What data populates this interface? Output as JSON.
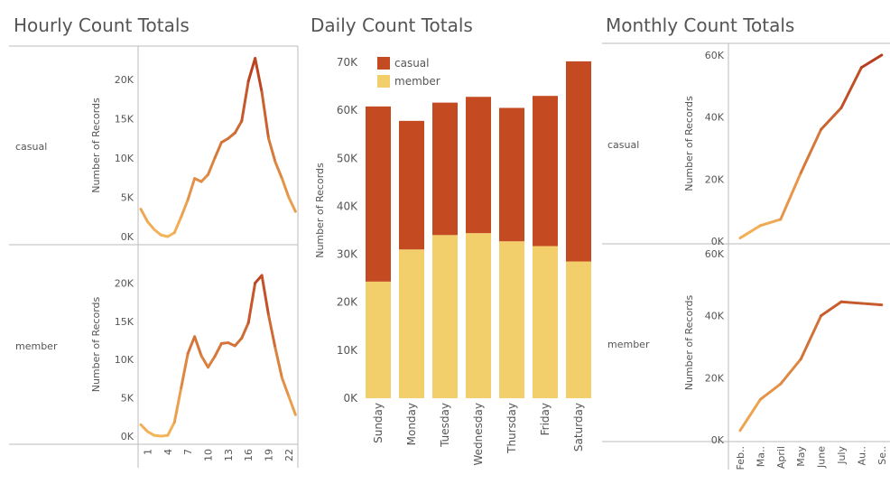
{
  "titles": {
    "hourly": "Hourly Count Totals",
    "daily": "Daily Count Totals",
    "monthly": "Monthly Count Totals"
  },
  "colors": {
    "casual": "#c44b21",
    "member": "#f2cf6a",
    "line_low": "#f5b55a",
    "line_high": "#b5391c",
    "axis": "#bbbbbb"
  },
  "chart_data": [
    {
      "type": "line",
      "title": "Hourly Count Totals",
      "ylabel": "Number of Records",
      "ylim": [
        0,
        23000
      ],
      "yticks": [
        0,
        5000,
        10000,
        15000,
        20000
      ],
      "ytick_labels": [
        "0K",
        "5K",
        "10K",
        "15K",
        "20K"
      ],
      "x": [
        0,
        1,
        2,
        3,
        4,
        5,
        6,
        7,
        8,
        9,
        10,
        11,
        12,
        13,
        14,
        15,
        16,
        17,
        18,
        19,
        20,
        21,
        22,
        23
      ],
      "xtick_labels": [
        "1",
        "4",
        "7",
        "10",
        "13",
        "16",
        "19",
        "22"
      ],
      "xticks": [
        1,
        4,
        7,
        10,
        13,
        16,
        19,
        22
      ],
      "series": [
        {
          "name": "casual",
          "values": [
            3500,
            1900,
            900,
            200,
            0,
            500,
            2500,
            4700,
            7400,
            7000,
            7900,
            10000,
            12000,
            12500,
            13200,
            14700,
            19800,
            22700,
            18400,
            12500,
            9500,
            7400,
            5000,
            3200
          ]
        },
        {
          "name": "member",
          "values": [
            1500,
            600,
            100,
            0,
            100,
            1800,
            6300,
            10800,
            13000,
            10500,
            9000,
            10400,
            12100,
            12200,
            11800,
            12800,
            14800,
            20000,
            21000,
            15800,
            11500,
            7600,
            5200,
            2800
          ]
        }
      ]
    },
    {
      "type": "bar",
      "title": "Daily Count Totals",
      "ylabel": "Number of Records",
      "ylim": [
        0,
        70000
      ],
      "yticks": [
        0,
        10000,
        20000,
        30000,
        40000,
        50000,
        60000,
        70000
      ],
      "ytick_labels": [
        "0K",
        "10K",
        "20K",
        "30K",
        "40K",
        "50K",
        "60K",
        "70K"
      ],
      "categories": [
        "Sunday",
        "Monday",
        "Tuesday",
        "Wednesday",
        "Thursday",
        "Friday",
        "Saturday"
      ],
      "legend": [
        "casual",
        "member"
      ],
      "series": [
        {
          "name": "member",
          "values": [
            24300,
            31000,
            34000,
            34400,
            32700,
            31700,
            28500
          ]
        },
        {
          "name": "casual",
          "values": [
            36500,
            26800,
            27600,
            28400,
            27800,
            31300,
            41700
          ]
        }
      ]
    },
    {
      "type": "line",
      "title": "Monthly Count Totals",
      "ylabel": "Number of Records",
      "ylim": [
        0,
        60000
      ],
      "yticks": [
        0,
        20000,
        40000,
        60000
      ],
      "ytick_labels": [
        "0K",
        "20K",
        "40K",
        "60K"
      ],
      "categories": [
        "Feb..",
        "Ma..",
        "April",
        "May",
        "June",
        "July",
        "Au..",
        "Se.."
      ],
      "series": [
        {
          "name": "casual",
          "values": [
            1000,
            5000,
            7000,
            22000,
            36000,
            43000,
            56000,
            60000
          ]
        },
        {
          "name": "member",
          "values": [
            3000,
            13000,
            18000,
            26000,
            40000,
            44500,
            44000,
            43500
          ]
        }
      ]
    }
  ]
}
